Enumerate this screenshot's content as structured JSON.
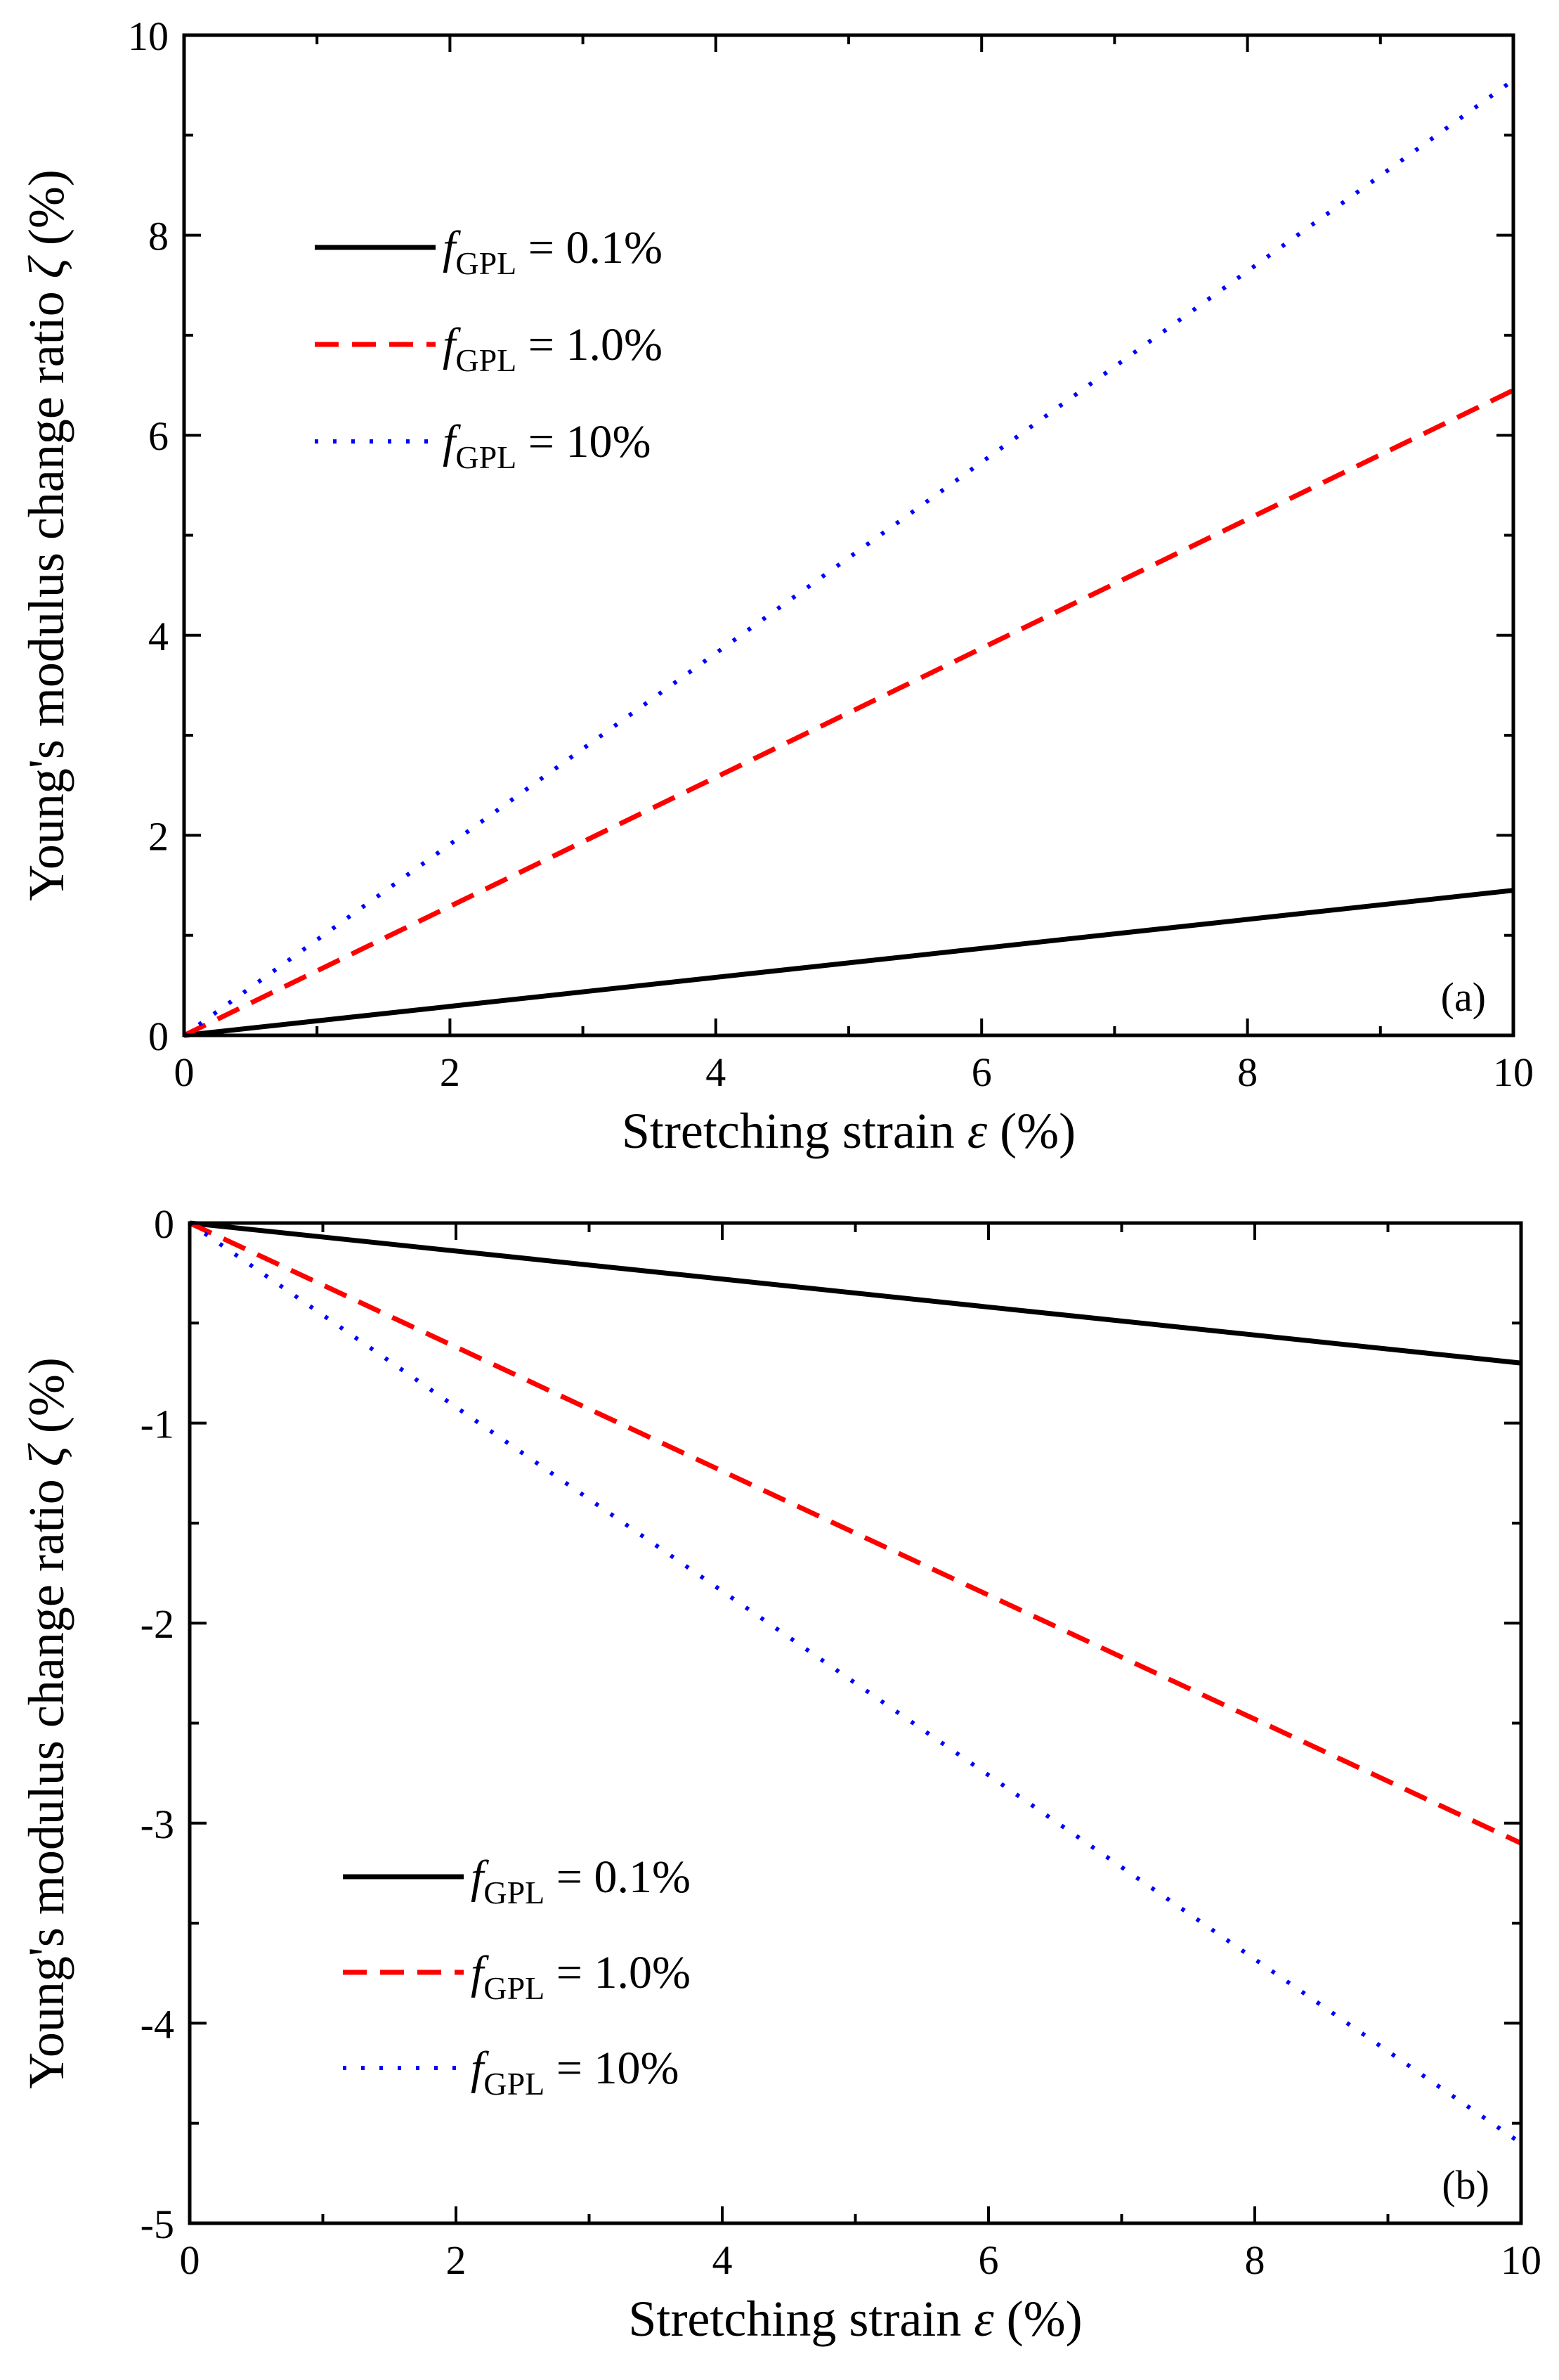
{
  "chart_data": [
    {
      "type": "line",
      "panel_label": "(a)",
      "title": "",
      "xlabel_text": "Stretching strain",
      "xlabel_symbol": "ε",
      "xlabel_unit": "(%)",
      "ylabel_text": "Young's modulus change ratio",
      "ylabel_symbol": "ζ",
      "ylabel_unit": "(%)",
      "xlim": [
        0,
        10
      ],
      "ylim": [
        0,
        10
      ],
      "x_major_ticks": [
        0,
        2,
        4,
        6,
        8,
        10
      ],
      "x_tick_labels": [
        "0",
        "2",
        "4",
        "6",
        "8",
        "10"
      ],
      "y_major_ticks": [
        0,
        2,
        4,
        6,
        8,
        10
      ],
      "y_tick_labels": [
        "0",
        "2",
        "4",
        "6",
        "8",
        "10"
      ],
      "grid": false,
      "legend_position": "top-left",
      "series": [
        {
          "name": "fGPL = 0.1%",
          "legend_prefix": "f",
          "legend_sub": "GPL",
          "legend_value": " = 0.1%",
          "style": "solid",
          "color": "#000000",
          "x": [
            0,
            10
          ],
          "y": [
            0,
            1.45
          ]
        },
        {
          "name": "fGPL = 1.0%",
          "legend_prefix": "f",
          "legend_sub": "GPL",
          "legend_value": " = 1.0%",
          "style": "dashed",
          "color": "#ff0000",
          "x": [
            0,
            10
          ],
          "y": [
            0,
            6.45
          ]
        },
        {
          "name": "fGPL = 10%",
          "legend_prefix": "f",
          "legend_sub": "GPL",
          "legend_value": " = 10%",
          "style": "dotted",
          "color": "#0000ff",
          "x": [
            0,
            10
          ],
          "y": [
            0,
            9.55
          ]
        }
      ]
    },
    {
      "type": "line",
      "panel_label": "(b)",
      "title": "",
      "xlabel_text": "Stretching strain",
      "xlabel_symbol": "ε",
      "xlabel_unit": "(%)",
      "ylabel_text": "Young's modulus change ratio",
      "ylabel_symbol": "ζ",
      "ylabel_unit": "(%)",
      "xlim": [
        0,
        10
      ],
      "ylim": [
        -5,
        0
      ],
      "x_major_ticks": [
        0,
        2,
        4,
        6,
        8,
        10
      ],
      "x_tick_labels": [
        "0",
        "2",
        "4",
        "6",
        "8",
        "10"
      ],
      "y_major_ticks": [
        -5,
        -4,
        -3,
        -2,
        -1,
        0
      ],
      "y_tick_labels": [
        "-5",
        "-4",
        "-3",
        "-2",
        "-1",
        "0"
      ],
      "grid": false,
      "legend_position": "bottom-left",
      "series": [
        {
          "name": "fGPL = 0.1%",
          "legend_prefix": "f",
          "legend_sub": "GPL",
          "legend_value": " = 0.1%",
          "style": "solid",
          "color": "#000000",
          "x": [
            0,
            10
          ],
          "y": [
            0,
            -0.7
          ]
        },
        {
          "name": "fGPL = 1.0%",
          "legend_prefix": "f",
          "legend_sub": "GPL",
          "legend_value": " = 1.0%",
          "style": "dashed",
          "color": "#ff0000",
          "x": [
            0,
            10
          ],
          "y": [
            0,
            -3.1
          ]
        },
        {
          "name": "fGPL = 10%",
          "legend_prefix": "f",
          "legend_sub": "GPL",
          "legend_value": " = 10%",
          "style": "dotted",
          "color": "#0000ff",
          "x": [
            0,
            10
          ],
          "y": [
            0,
            -4.6
          ]
        }
      ]
    }
  ]
}
